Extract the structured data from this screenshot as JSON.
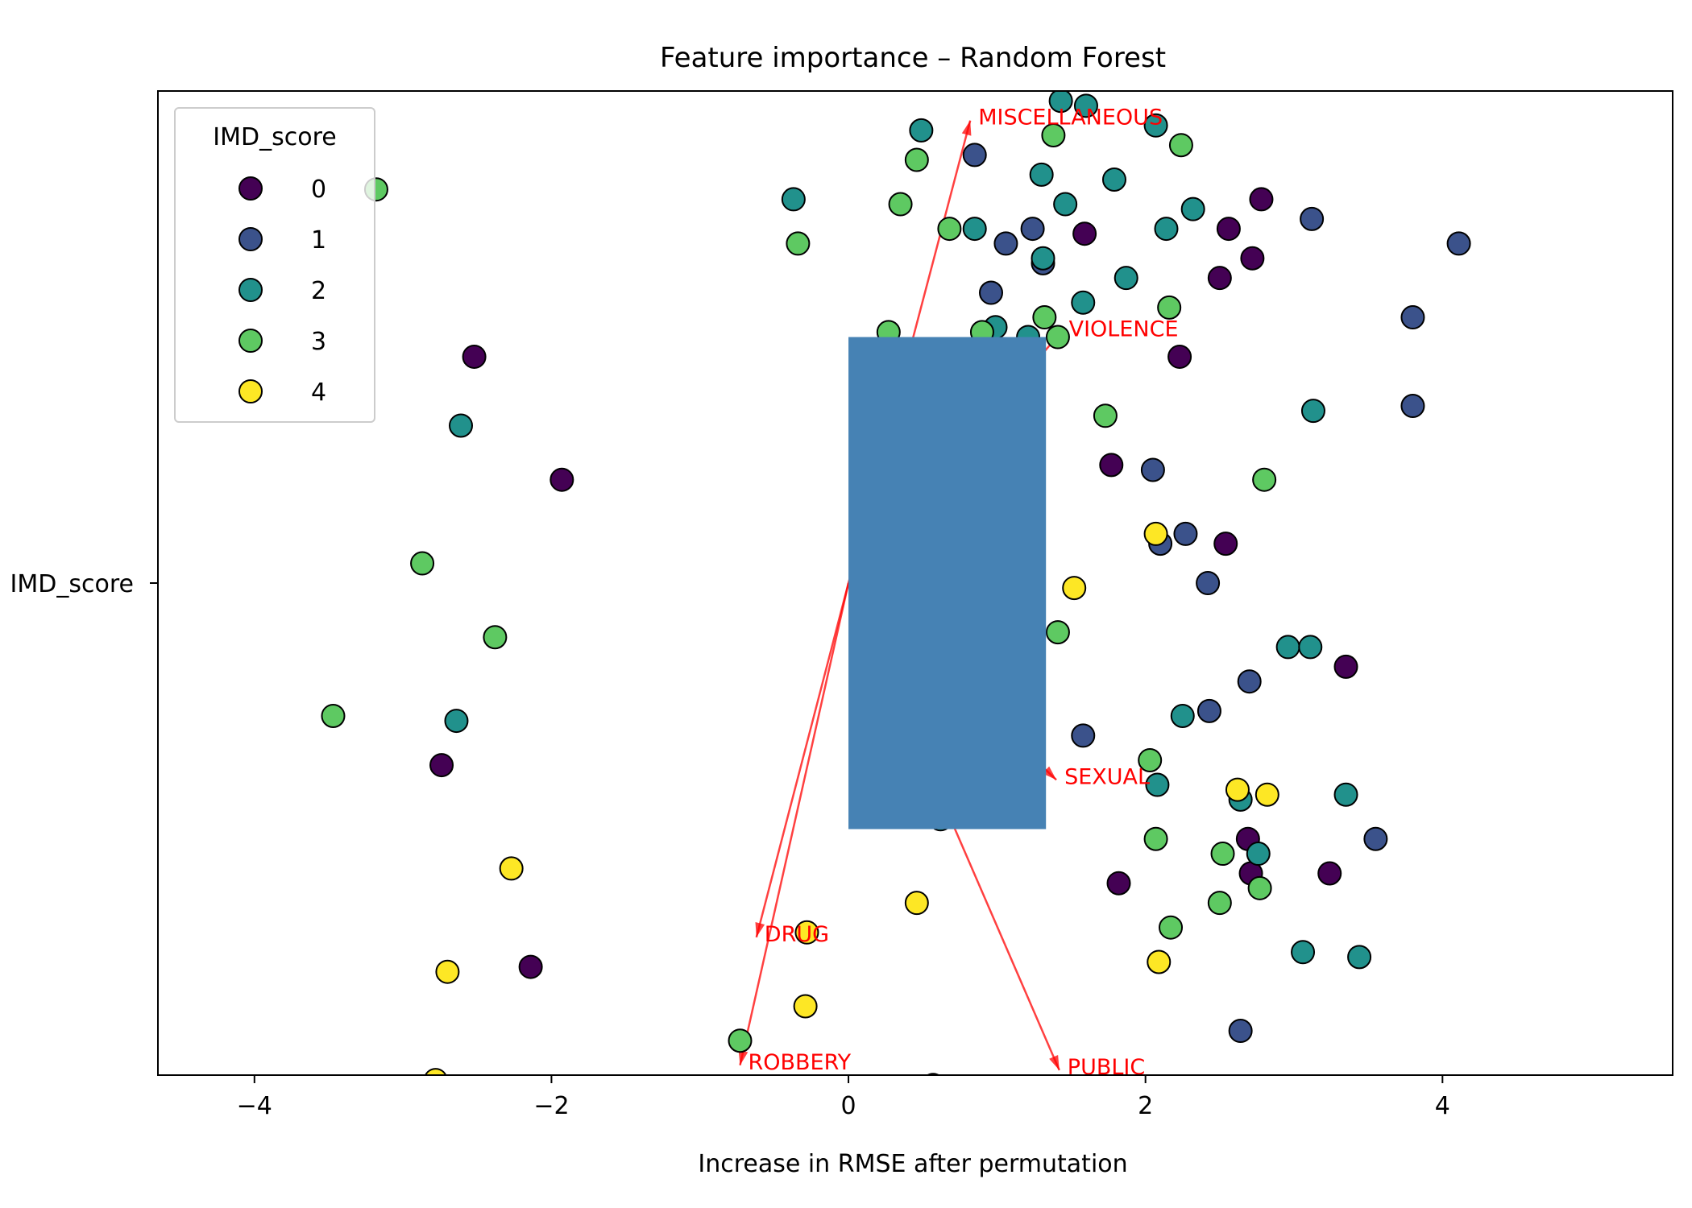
{
  "chart_data": {
    "type": "scatter",
    "title": "Feature importance – Random Forest",
    "xlabel": "Increase in RMSE after permutation",
    "ylabel": "",
    "xlim": [
      -4.65,
      5.55
    ],
    "ylim": [
      -1.0,
      1.0
    ],
    "x_ticks": [
      -4,
      -2,
      0,
      2,
      4
    ],
    "x_tick_labels": [
      "−4",
      "−2",
      "0",
      "2",
      "4"
    ],
    "y_ticks": [
      0
    ],
    "y_tick_labels": [
      "IMD_score"
    ],
    "grid": false,
    "legend": {
      "title": "IMD_score",
      "position": "upper-left",
      "entries": [
        {
          "label": "0",
          "color": "#440154"
        },
        {
          "label": "1",
          "color": "#3b528b"
        },
        {
          "label": "2",
          "color": "#21918c"
        },
        {
          "label": "3",
          "color": "#5ec962"
        },
        {
          "label": "4",
          "color": "#fde725"
        }
      ]
    },
    "bar": {
      "category": "IMD_score",
      "value": 1.33,
      "color": "#4682b4"
    },
    "arrows": [
      {
        "label": "MISCELLANEOUS",
        "x": 0.82,
        "y": 0.94
      },
      {
        "label": "VIOLENCE",
        "x": 1.43,
        "y": 0.51
      },
      {
        "label": "SEXUAL",
        "x": 1.4,
        "y": -0.4
      },
      {
        "label": "DRUG",
        "x": -0.62,
        "y": -0.72
      },
      {
        "label": "ROBBERY",
        "x": -0.73,
        "y": -0.98
      },
      {
        "label": "PUBLIC",
        "x": 1.42,
        "y": -0.99
      }
    ],
    "arrow_color": "#ff0000",
    "series": [
      {
        "group": 0,
        "points": [
          [
            2.78,
            0.78
          ],
          [
            2.56,
            0.72
          ],
          [
            1.59,
            0.71
          ],
          [
            2.72,
            0.66
          ],
          [
            2.5,
            0.62
          ],
          [
            -2.52,
            0.46
          ],
          [
            2.23,
            0.46
          ],
          [
            -1.93,
            0.21
          ],
          [
            1.77,
            0.24
          ],
          [
            2.54,
            0.08
          ],
          [
            3.35,
            -0.17
          ],
          [
            -2.74,
            -0.37
          ],
          [
            2.69,
            -0.52
          ],
          [
            2.71,
            -0.59
          ],
          [
            3.24,
            -0.59
          ],
          [
            1.82,
            -0.61
          ],
          [
            -2.14,
            -0.78
          ],
          [
            0.57,
            -1.02
          ]
        ]
      },
      {
        "group": 1,
        "points": [
          [
            0.85,
            0.87
          ],
          [
            3.12,
            0.74
          ],
          [
            1.24,
            0.72
          ],
          [
            1.06,
            0.69
          ],
          [
            1.31,
            0.65
          ],
          [
            4.11,
            0.69
          ],
          [
            0.96,
            0.59
          ],
          [
            3.8,
            0.54
          ],
          [
            3.8,
            0.36
          ],
          [
            2.05,
            0.23
          ],
          [
            2.27,
            0.1
          ],
          [
            2.1,
            0.08
          ],
          [
            2.42,
            0.0
          ],
          [
            2.7,
            -0.2
          ],
          [
            2.43,
            -0.26
          ],
          [
            1.58,
            -0.31
          ],
          [
            3.55,
            -0.52
          ],
          [
            2.64,
            -0.91
          ]
        ]
      },
      {
        "group": 2,
        "points": [
          [
            1.43,
            0.98
          ],
          [
            1.6,
            0.97
          ],
          [
            2.07,
            0.93
          ],
          [
            0.49,
            0.92
          ],
          [
            1.3,
            0.83
          ],
          [
            1.79,
            0.82
          ],
          [
            -0.37,
            0.78
          ],
          [
            1.46,
            0.77
          ],
          [
            2.32,
            0.76
          ],
          [
            0.85,
            0.72
          ],
          [
            2.14,
            0.72
          ],
          [
            1.31,
            0.66
          ],
          [
            1.87,
            0.62
          ],
          [
            1.58,
            0.57
          ],
          [
            0.99,
            0.52
          ],
          [
            1.21,
            0.5
          ],
          [
            -2.61,
            0.32
          ],
          [
            3.13,
            0.35
          ],
          [
            2.96,
            -0.13
          ],
          [
            3.11,
            -0.13
          ],
          [
            2.25,
            -0.27
          ],
          [
            -2.64,
            -0.28
          ],
          [
            2.08,
            -0.41
          ],
          [
            2.64,
            -0.44
          ],
          [
            3.35,
            -0.43
          ],
          [
            2.76,
            -0.55
          ],
          [
            0.62,
            -0.48
          ],
          [
            3.06,
            -0.75
          ],
          [
            3.44,
            -0.76
          ]
        ]
      },
      {
        "group": 3,
        "points": [
          [
            1.38,
            0.91
          ],
          [
            2.24,
            0.89
          ],
          [
            0.46,
            0.86
          ],
          [
            -3.18,
            0.8
          ],
          [
            0.35,
            0.77
          ],
          [
            0.68,
            0.72
          ],
          [
            -0.34,
            0.69
          ],
          [
            1.32,
            0.54
          ],
          [
            0.27,
            0.51
          ],
          [
            0.9,
            0.51
          ],
          [
            1.41,
            0.5
          ],
          [
            2.16,
            0.56
          ],
          [
            1.73,
            0.34
          ],
          [
            2.8,
            0.21
          ],
          [
            -2.87,
            0.04
          ],
          [
            -2.38,
            -0.11
          ],
          [
            1.41,
            -0.1
          ],
          [
            -3.47,
            -0.27
          ],
          [
            2.03,
            -0.36
          ],
          [
            2.07,
            -0.52
          ],
          [
            2.52,
            -0.55
          ],
          [
            2.77,
            -0.62
          ],
          [
            2.5,
            -0.65
          ],
          [
            2.17,
            -0.7
          ],
          [
            -0.73,
            -0.93
          ]
        ]
      },
      {
        "group": 4,
        "points": [
          [
            2.07,
            0.1
          ],
          [
            1.52,
            -0.01
          ],
          [
            2.62,
            -0.42
          ],
          [
            2.82,
            -0.43
          ],
          [
            -2.27,
            -0.58
          ],
          [
            0.46,
            -0.65
          ],
          [
            -0.28,
            -0.71
          ],
          [
            -2.7,
            -0.79
          ],
          [
            2.09,
            -0.77
          ],
          [
            -0.29,
            -0.86
          ],
          [
            -2.78,
            -1.01
          ]
        ]
      }
    ]
  }
}
